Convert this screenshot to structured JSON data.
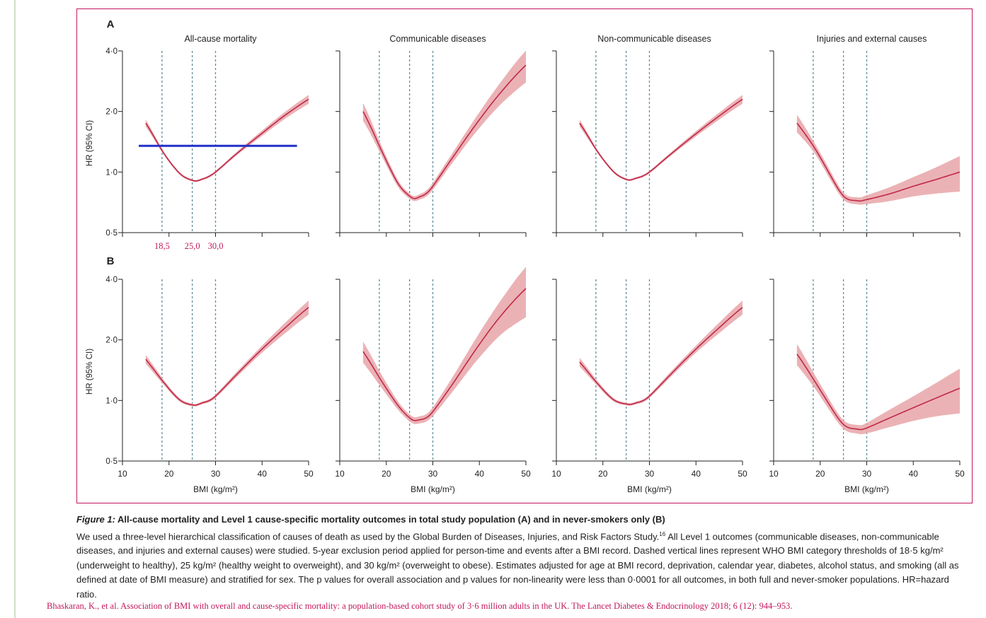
{
  "figure": {
    "panel_labels": [
      "A",
      "B"
    ],
    "column_titles": [
      "All-cause mortality",
      "Communicable diseases",
      "Non-communicable diseases",
      "Injuries and external causes"
    ],
    "y_axis_label": "HR (95% CI)",
    "x_axis_label": "BMI (kg/m²)",
    "x_ticks": [
      "10",
      "20",
      "30",
      "40",
      "50"
    ],
    "y_ticks": [
      "0·5",
      "1·0",
      "2·0",
      "4·0"
    ],
    "threshold_labels": [
      "18,5",
      "25,0",
      "30,0"
    ],
    "colors": {
      "curve": "#c0284a",
      "band": "#e8a4a8",
      "dashed": "#5f8f98",
      "overlay_line": "#2030c8",
      "accent": "#c2185b",
      "axis": "#222222"
    }
  },
  "chart_data": {
    "type": "line",
    "x_axis": {
      "label": "BMI (kg/m²)",
      "range": [
        10,
        50
      ],
      "ticks": [
        10,
        20,
        30,
        40,
        50
      ]
    },
    "y_axis": {
      "label": "HR (95% CI)",
      "scale": "log2",
      "range": [
        0.5,
        4.0
      ],
      "ticks": [
        0.5,
        1.0,
        2.0,
        4.0
      ]
    },
    "reference_lines_x": [
      18.5,
      25,
      30
    ],
    "panels": [
      {
        "row": "A",
        "col": 0,
        "title": "All-cause mortality",
        "x": [
          15,
          18.5,
          22,
          25,
          27,
          30,
          35,
          40,
          45,
          50
        ],
        "y": [
          1.75,
          1.28,
          1.0,
          0.91,
          0.92,
          1.0,
          1.26,
          1.56,
          1.92,
          2.3
        ],
        "band_width": [
          0.04,
          0.02,
          0.015,
          0.012,
          0.012,
          0.015,
          0.02,
          0.03,
          0.04,
          0.05
        ],
        "overlay_hline": {
          "y": 1.35,
          "x_from": 13.5,
          "x_to": 47.5
        }
      },
      {
        "row": "A",
        "col": 1,
        "title": "Communicable diseases",
        "x": [
          15,
          18.5,
          22,
          25,
          27,
          30,
          35,
          40,
          45,
          50
        ],
        "y": [
          2.0,
          1.35,
          0.92,
          0.76,
          0.75,
          0.85,
          1.25,
          1.82,
          2.55,
          3.4
        ],
        "band_width": [
          0.1,
          0.06,
          0.04,
          0.03,
          0.03,
          0.04,
          0.06,
          0.09,
          0.13,
          0.18
        ]
      },
      {
        "row": "A",
        "col": 2,
        "title": "Non-communicable diseases",
        "x": [
          15,
          18.5,
          22,
          25,
          27,
          30,
          35,
          40,
          45,
          50
        ],
        "y": [
          1.75,
          1.3,
          1.02,
          0.92,
          0.93,
          1.0,
          1.25,
          1.55,
          1.9,
          2.3
        ],
        "band_width": [
          0.04,
          0.02,
          0.015,
          0.012,
          0.012,
          0.015,
          0.02,
          0.03,
          0.04,
          0.05
        ]
      },
      {
        "row": "A",
        "col": 3,
        "title": "Injuries and external causes",
        "x": [
          15,
          18.5,
          22,
          25,
          28,
          30,
          35,
          40,
          45,
          50
        ],
        "y": [
          1.75,
          1.35,
          0.98,
          0.76,
          0.72,
          0.73,
          0.78,
          0.85,
          0.92,
          1.0
        ],
        "band_width": [
          0.1,
          0.06,
          0.05,
          0.04,
          0.04,
          0.05,
          0.08,
          0.11,
          0.15,
          0.2
        ]
      },
      {
        "row": "B",
        "col": 0,
        "title": "",
        "x": [
          15,
          18.5,
          22,
          25,
          27,
          30,
          35,
          40,
          45,
          50
        ],
        "y": [
          1.6,
          1.26,
          1.02,
          0.95,
          0.97,
          1.05,
          1.38,
          1.8,
          2.3,
          2.9
        ],
        "band_width": [
          0.05,
          0.03,
          0.02,
          0.015,
          0.015,
          0.02,
          0.03,
          0.04,
          0.06,
          0.08
        ]
      },
      {
        "row": "B",
        "col": 1,
        "title": "",
        "x": [
          15,
          18.5,
          22,
          25,
          27,
          30,
          35,
          40,
          45,
          50
        ],
        "y": [
          1.75,
          1.3,
          0.98,
          0.82,
          0.8,
          0.88,
          1.28,
          1.9,
          2.7,
          3.6
        ],
        "band_width": [
          0.12,
          0.08,
          0.05,
          0.04,
          0.04,
          0.05,
          0.09,
          0.14,
          0.2,
          0.28
        ]
      },
      {
        "row": "B",
        "col": 2,
        "title": "",
        "x": [
          15,
          18.5,
          22,
          25,
          27,
          30,
          35,
          40,
          45,
          50
        ],
        "y": [
          1.55,
          1.24,
          1.02,
          0.96,
          0.97,
          1.05,
          1.38,
          1.8,
          2.3,
          2.9
        ],
        "band_width": [
          0.05,
          0.03,
          0.02,
          0.015,
          0.015,
          0.02,
          0.03,
          0.04,
          0.06,
          0.08
        ]
      },
      {
        "row": "B",
        "col": 3,
        "title": "",
        "x": [
          15,
          18.5,
          22,
          25,
          28,
          30,
          35,
          40,
          45,
          50
        ],
        "y": [
          1.7,
          1.28,
          0.95,
          0.76,
          0.72,
          0.73,
          0.82,
          0.92,
          1.03,
          1.15
        ],
        "band_width": [
          0.12,
          0.08,
          0.06,
          0.05,
          0.05,
          0.06,
          0.1,
          0.14,
          0.19,
          0.25
        ]
      }
    ]
  },
  "caption": {
    "figure_label": "Figure 1:",
    "title": "All-cause mortality and Level 1 cause-specific mortality outcomes in total study population (A) and in never-smokers only (B)",
    "body_1": "We used a three-level hierarchical classification of causes of death as used by the Global Burden of Diseases, Injuries, and Risk Factors Study.",
    "superscript": "16",
    "body_2": " All Level 1 outcomes (communicable diseases, non-communicable diseases, and injuries and external causes) were studied. 5-year exclusion period applied for person-time and events after a BMI record. Dashed vertical lines represent WHO BMI category thresholds of 18·5 kg/m² (underweight to healthy), 25 kg/m² (healthy weight to overweight), and 30 kg/m² (overweight to obese). Estimates adjusted for age at BMI record, deprivation, calendar year, diabetes, alcohol status, and smoking (all as defined at date of BMI measure) and stratified for sex. The p values for overall association and p values for non-linearity were less than 0·0001 for all outcomes, in both full and never-smoker populations. HR=hazard ratio."
  },
  "citation": "Bhaskaran, K., et al. Association of BMI with overall and cause-specific mortality: a population-based cohort study of 3·6 million adults in the UK. The Lancet Diabetes & Endocrinology 2018; 6 (12): 944–953."
}
